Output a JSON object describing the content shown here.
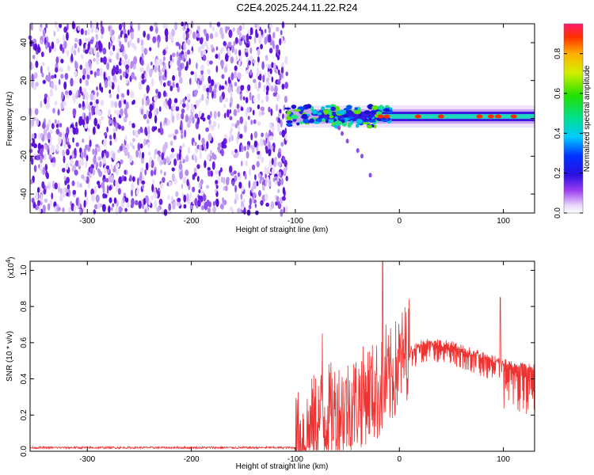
{
  "title": "C2E4.2025.244.11.22.R24",
  "chart_data": [
    {
      "type": "heatmap",
      "name": "spectrogram",
      "xlabel": "Height of straight line (km)",
      "ylabel": "Frequency (Hz)",
      "xlim": [
        -355,
        130
      ],
      "ylim": [
        -50,
        50
      ],
      "xticks": [
        -300,
        -200,
        -100,
        0,
        100
      ],
      "xtick_labels": [
        "-300",
        "-200",
        "-100",
        "0",
        "100"
      ],
      "yticks": [
        -40,
        -20,
        0,
        20,
        40
      ],
      "ytick_labels": [
        "-40",
        "-20",
        "0",
        "20",
        "40"
      ],
      "noise_region_x": [
        -355,
        -108
      ],
      "signal_band": {
        "x": [
          -108,
          130
        ],
        "freq_hz": 1
      },
      "colorbar": {
        "label": "Normalized spectral amplitude",
        "range": [
          0,
          0.95
        ],
        "ticks": [
          0.0,
          0.2,
          0.4,
          0.6,
          0.8
        ],
        "tick_labels": [
          "0.0",
          "0.2",
          "0.4",
          "0.6",
          "0.8"
        ]
      }
    },
    {
      "type": "line",
      "name": "snr",
      "xlabel": "Height of straight line (km)",
      "ylabel": "SNR (10 * v/v)",
      "y_multiplier": "(x10",
      "y_multiplier_exp": "4",
      "y_multiplier_close": ")",
      "xlim": [
        -355,
        130
      ],
      "ylim": [
        0,
        1.05
      ],
      "xticks": [
        -300,
        -200,
        -100,
        0,
        100
      ],
      "xtick_labels": [
        "-300",
        "-200",
        "-100",
        "0",
        "100"
      ],
      "yticks": [
        0.0,
        0.2,
        0.4,
        0.6,
        0.8,
        1.0
      ],
      "ytick_labels": [
        "0.0",
        "0.2",
        "0.4",
        "0.6",
        "0.8",
        "1.0"
      ],
      "color": "#ee3333",
      "envelope": {
        "x": [
          -355,
          -100,
          -90,
          -80,
          -70,
          -60,
          -50,
          -40,
          -30,
          -20,
          -10,
          0,
          10,
          20,
          30,
          40,
          50,
          60,
          70,
          80,
          90,
          100,
          110,
          120,
          130
        ],
        "y": [
          0.02,
          0.02,
          0.06,
          0.14,
          0.18,
          0.2,
          0.22,
          0.25,
          0.3,
          0.3,
          0.36,
          0.46,
          0.56,
          0.6,
          0.61,
          0.6,
          0.59,
          0.57,
          0.55,
          0.53,
          0.51,
          0.49,
          0.48,
          0.47,
          0.47
        ]
      },
      "peaks": [
        {
          "x": -16,
          "y": 1.05
        },
        {
          "x": -74,
          "y": 0.65
        },
        {
          "x": -13,
          "y": 0.7
        },
        {
          "x": 97,
          "y": 0.85
        }
      ]
    }
  ]
}
